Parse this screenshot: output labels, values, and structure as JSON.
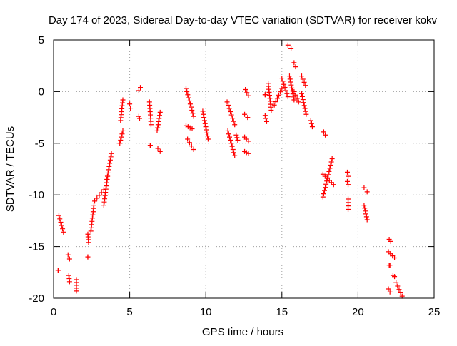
{
  "chart_data": {
    "type": "scatter",
    "title": "Day 174 of 2023, Sidereal Day-to-day VTEC variation (SDTVAR) for receiver kokv",
    "xlabel": "GPS time / hours",
    "ylabel": "SDTVAR / TECUs",
    "xlim": [
      0,
      25
    ],
    "ylim": [
      -20,
      5
    ],
    "xticks": [
      0,
      5,
      10,
      15,
      20,
      25
    ],
    "yticks": [
      -20,
      -15,
      -10,
      -5,
      0,
      5
    ],
    "xtick_labels": [
      "0",
      "5",
      "10",
      "15",
      "20",
      "25"
    ],
    "ytick_labels": [
      "-20",
      "-15",
      "-10",
      "-5",
      "0",
      "5"
    ],
    "grid": true,
    "marker": "+",
    "marker_color": "#ff0000",
    "segments": [
      {
        "x0": 0.35,
        "x1": 0.65,
        "y0": -12.0,
        "y1": -13.6
      },
      {
        "x0": 0.3,
        "x1": 0.3,
        "y0": -17.3,
        "y1": -17.3
      },
      {
        "x0": 0.95,
        "x1": 1.05,
        "y0": -15.8,
        "y1": -16.2
      },
      {
        "x0": 1.0,
        "x1": 1.05,
        "y0": -17.8,
        "y1": -18.4
      },
      {
        "x0": 1.5,
        "x1": 1.5,
        "y0": -18.2,
        "y1": -19.3
      },
      {
        "x0": 2.25,
        "x1": 2.3,
        "y0": -13.8,
        "y1": -14.6
      },
      {
        "x0": 2.25,
        "x1": 2.25,
        "y0": -16.0,
        "y1": -16.0
      },
      {
        "x0": 2.45,
        "x1": 2.65,
        "y0": -13.5,
        "y1": -11.0
      },
      {
        "x0": 2.7,
        "x1": 3.3,
        "y0": -10.6,
        "y1": -9.5
      },
      {
        "x0": 3.3,
        "x1": 3.55,
        "y0": -11.0,
        "y1": -8.2
      },
      {
        "x0": 3.5,
        "x1": 3.8,
        "y0": -8.5,
        "y1": -6.0
      },
      {
        "x0": 4.35,
        "x1": 4.55,
        "y0": -5.0,
        "y1": -3.8
      },
      {
        "x0": 4.4,
        "x1": 4.55,
        "y0": -2.8,
        "y1": -0.8
      },
      {
        "x0": 5.0,
        "x1": 5.05,
        "y0": -1.2,
        "y1": -1.6
      },
      {
        "x0": 5.6,
        "x1": 5.7,
        "y0": 0.1,
        "y1": 0.4
      },
      {
        "x0": 5.6,
        "x1": 5.65,
        "y0": -2.4,
        "y1": -2.6
      },
      {
        "x0": 6.3,
        "x1": 6.4,
        "y0": -1.0,
        "y1": -3.2
      },
      {
        "x0": 6.35,
        "x1": 6.35,
        "y0": -5.2,
        "y1": -5.2
      },
      {
        "x0": 6.8,
        "x1": 7.0,
        "y0": -3.8,
        "y1": -2.0
      },
      {
        "x0": 6.85,
        "x1": 7.0,
        "y0": -5.5,
        "y1": -5.8
      },
      {
        "x0": 8.7,
        "x1": 9.2,
        "y0": 0.3,
        "y1": -2.4
      },
      {
        "x0": 8.7,
        "x1": 9.1,
        "y0": -3.3,
        "y1": -3.6
      },
      {
        "x0": 8.8,
        "x1": 9.2,
        "y0": -4.6,
        "y1": -5.6
      },
      {
        "x0": 9.8,
        "x1": 10.15,
        "y0": -1.9,
        "y1": -4.6
      },
      {
        "x0": 11.4,
        "x1": 11.9,
        "y0": -1.0,
        "y1": -3.2
      },
      {
        "x0": 11.45,
        "x1": 11.9,
        "y0": -3.8,
        "y1": -6.2
      },
      {
        "x0": 12.0,
        "x1": 12.1,
        "y0": -4.2,
        "y1": -4.7
      },
      {
        "x0": 12.6,
        "x1": 12.8,
        "y0": 0.2,
        "y1": -0.4
      },
      {
        "x0": 12.55,
        "x1": 12.75,
        "y0": -2.2,
        "y1": -2.5
      },
      {
        "x0": 12.55,
        "x1": 12.8,
        "y0": -4.4,
        "y1": -4.8
      },
      {
        "x0": 12.55,
        "x1": 12.8,
        "y0": -5.8,
        "y1": -6.0
      },
      {
        "x0": 13.9,
        "x1": 14.0,
        "y0": -2.3,
        "y1": -2.9
      },
      {
        "x0": 13.9,
        "x1": 13.9,
        "y0": -0.3,
        "y1": -0.3
      },
      {
        "x0": 14.1,
        "x1": 14.3,
        "y0": 0.8,
        "y1": -1.8
      },
      {
        "x0": 14.5,
        "x1": 15.0,
        "y0": -1.3,
        "y1": 0.3
      },
      {
        "x0": 15.0,
        "x1": 15.4,
        "y0": 1.3,
        "y1": -0.5
      },
      {
        "x0": 15.4,
        "x1": 15.6,
        "y0": 4.5,
        "y1": 4.2
      },
      {
        "x0": 15.5,
        "x1": 15.8,
        "y0": 1.5,
        "y1": -0.8
      },
      {
        "x0": 15.8,
        "x1": 15.9,
        "y0": 2.8,
        "y1": 2.4
      },
      {
        "x0": 15.8,
        "x1": 16.1,
        "y0": 0.0,
        "y1": -1.0
      },
      {
        "x0": 16.3,
        "x1": 16.55,
        "y0": 1.5,
        "y1": 0.6
      },
      {
        "x0": 16.3,
        "x1": 16.6,
        "y0": -0.2,
        "y1": -2.2
      },
      {
        "x0": 16.9,
        "x1": 17.0,
        "y0": -2.8,
        "y1": -3.4
      },
      {
        "x0": 17.75,
        "x1": 17.85,
        "y0": -3.9,
        "y1": -4.2
      },
      {
        "x0": 17.7,
        "x1": 18.3,
        "y0": -10.2,
        "y1": -6.5
      },
      {
        "x0": 17.7,
        "x1": 18.4,
        "y0": -8.0,
        "y1": -9.0
      },
      {
        "x0": 19.3,
        "x1": 19.35,
        "y0": -7.8,
        "y1": -8.2
      },
      {
        "x0": 19.3,
        "x1": 19.35,
        "y0": -8.7,
        "y1": -9.0
      },
      {
        "x0": 19.35,
        "x1": 19.35,
        "y0": -10.4,
        "y1": -11.4
      },
      {
        "x0": 20.4,
        "x1": 20.6,
        "y0": -9.3,
        "y1": -9.7
      },
      {
        "x0": 20.4,
        "x1": 20.6,
        "y0": -11.0,
        "y1": -12.4
      },
      {
        "x0": 22.05,
        "x1": 22.15,
        "y0": -14.3,
        "y1": -14.5
      },
      {
        "x0": 22.0,
        "x1": 22.4,
        "y0": -15.5,
        "y1": -16.1
      },
      {
        "x0": 22.05,
        "x1": 22.1,
        "y0": -16.8,
        "y1": -16.8
      },
      {
        "x0": 22.3,
        "x1": 22.4,
        "y0": -17.8,
        "y1": -17.9
      },
      {
        "x0": 22.0,
        "x1": 22.1,
        "y0": -19.1,
        "y1": -19.4
      },
      {
        "x0": 22.5,
        "x1": 22.9,
        "y0": -18.5,
        "y1": -19.8
      }
    ]
  }
}
